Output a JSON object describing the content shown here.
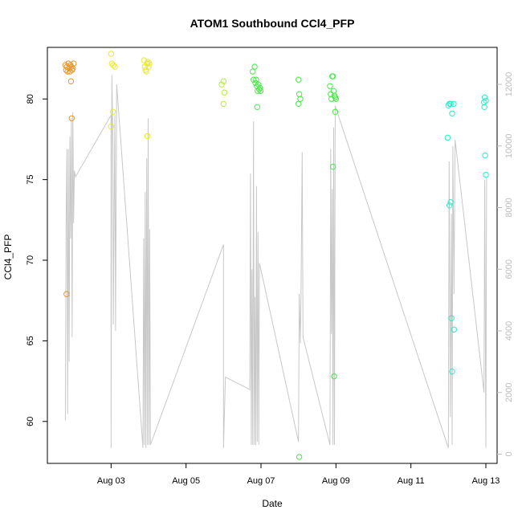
{
  "chart_data": {
    "type": "scatter",
    "title": "ATOM1 Southbound CCl4_PFP",
    "xlabel": "Date",
    "ylabel": "CCl4_PFP",
    "xlim": [
      1.3,
      13.3
    ],
    "ylim": [
      57.4,
      83.2
    ],
    "y2lim": [
      -300,
      13200
    ],
    "x_ticks": [
      {
        "value": 3,
        "label": "Aug 03"
      },
      {
        "value": 5,
        "label": "Aug 05"
      },
      {
        "value": 7,
        "label": "Aug 07"
      },
      {
        "value": 9,
        "label": "Aug 09"
      },
      {
        "value": 11,
        "label": "Aug 11"
      },
      {
        "value": 13,
        "label": "Aug 13"
      }
    ],
    "y_ticks": [
      60,
      65,
      70,
      75,
      80
    ],
    "y2_ticks": [
      0,
      2000,
      4000,
      6000,
      8000,
      10000,
      12000
    ],
    "grid": false,
    "legend": "none",
    "colors": {
      "orange": "#e8952b",
      "yellow": "#e8e832",
      "lime": "#b4f03c",
      "green": "#48e848",
      "spring": "#2ef09a",
      "cyan": "#2ee8c8",
      "altitude_line": "#c8c8c8"
    },
    "series": [
      {
        "color": "orange",
        "points": [
          [
            1.78,
            82.1
          ],
          [
            1.8,
            81.8
          ],
          [
            1.82,
            82.0
          ],
          [
            1.84,
            81.7
          ],
          [
            1.86,
            82.2
          ],
          [
            1.88,
            81.9
          ],
          [
            1.9,
            81.7
          ],
          [
            1.92,
            82.1
          ],
          [
            1.94,
            82.0
          ],
          [
            1.96,
            81.8
          ],
          [
            1.98,
            81.9
          ],
          [
            1.81,
            67.9
          ],
          [
            1.93,
            81.1
          ],
          [
            1.95,
            78.8
          ],
          [
            2.0,
            82.2
          ]
        ]
      },
      {
        "color": "yellow",
        "points": [
          [
            3.0,
            82.8
          ],
          [
            3.02,
            82.2
          ],
          [
            3.06,
            82.1
          ],
          [
            3.1,
            82.0
          ],
          [
            3.0,
            78.3
          ],
          [
            3.05,
            79.2
          ],
          [
            3.88,
            82.4
          ],
          [
            3.9,
            82.0
          ],
          [
            3.92,
            81.8
          ],
          [
            3.94,
            81.7
          ],
          [
            3.96,
            82.2
          ],
          [
            3.98,
            82.3
          ],
          [
            4.0,
            82.0
          ],
          [
            4.02,
            82.2
          ],
          [
            3.97,
            77.7
          ]
        ]
      },
      {
        "color": "lime",
        "points": [
          [
            5.95,
            80.9
          ],
          [
            6.0,
            81.1
          ],
          [
            6.02,
            80.4
          ],
          [
            6.0,
            79.7
          ]
        ]
      },
      {
        "color": "green",
        "points": [
          [
            6.78,
            81.7
          ],
          [
            6.8,
            81.2
          ],
          [
            6.83,
            82.0
          ],
          [
            6.85,
            81.0
          ],
          [
            6.87,
            81.2
          ],
          [
            6.89,
            80.8
          ],
          [
            6.91,
            80.5
          ],
          [
            6.93,
            80.9
          ],
          [
            6.95,
            80.6
          ],
          [
            6.97,
            80.7
          ],
          [
            6.99,
            80.5
          ],
          [
            6.9,
            79.5
          ],
          [
            8.0,
            81.2
          ],
          [
            8.02,
            80.3
          ],
          [
            8.05,
            80.0
          ],
          [
            8.0,
            79.7
          ],
          [
            8.02,
            57.8
          ],
          [
            8.84,
            80.8
          ],
          [
            8.86,
            80.3
          ],
          [
            8.88,
            80.0
          ],
          [
            8.9,
            81.4
          ],
          [
            8.92,
            81.4
          ],
          [
            8.94,
            80.5
          ],
          [
            8.96,
            80.2
          ],
          [
            8.98,
            80.1
          ],
          [
            9.0,
            80.0
          ],
          [
            8.98,
            79.2
          ],
          [
            8.92,
            75.8
          ],
          [
            8.95,
            62.8
          ]
        ]
      },
      {
        "color": "cyan",
        "points": [
          [
            11.98,
            77.6
          ],
          [
            12.0,
            79.6
          ],
          [
            12.03,
            79.7
          ],
          [
            12.06,
            79.7
          ],
          [
            12.1,
            79.1
          ],
          [
            12.14,
            79.7
          ],
          [
            12.03,
            73.4
          ],
          [
            12.06,
            73.6
          ],
          [
            12.08,
            66.4
          ],
          [
            12.1,
            63.1
          ],
          [
            12.15,
            65.7
          ],
          [
            12.95,
            79.8
          ],
          [
            12.97,
            80.1
          ],
          [
            13.0,
            79.9
          ],
          [
            12.96,
            79.5
          ],
          [
            12.98,
            76.5
          ],
          [
            13.0,
            75.3
          ]
        ]
      }
    ],
    "altitude_series": {
      "axis": "right",
      "points": [
        [
          1.78,
          1100
        ],
        [
          1.8,
          7500
        ],
        [
          1.82,
          9900
        ],
        [
          1.84,
          1300
        ],
        [
          1.86,
          9900
        ],
        [
          1.88,
          3000
        ],
        [
          1.9,
          10300
        ],
        [
          1.92,
          7000
        ],
        [
          1.94,
          10900
        ],
        [
          1.96,
          3800
        ],
        [
          1.98,
          11100
        ],
        [
          2.0,
          7500
        ],
        [
          2.02,
          9200
        ],
        [
          2.05,
          9000
        ],
        [
          3.0,
          11000
        ],
        [
          3.0,
          200
        ],
        [
          3.02,
          12300
        ],
        [
          3.05,
          10000
        ],
        [
          3.06,
          4200
        ],
        [
          3.1,
          11000
        ],
        [
          3.12,
          4000
        ],
        [
          3.15,
          12000
        ],
        [
          3.85,
          200
        ],
        [
          3.87,
          7000
        ],
        [
          3.89,
          300
        ],
        [
          3.91,
          8500
        ],
        [
          3.93,
          200
        ],
        [
          3.95,
          9600
        ],
        [
          3.97,
          300
        ],
        [
          3.99,
          10900
        ],
        [
          4.01,
          300
        ],
        [
          4.03,
          7300
        ],
        [
          4.05,
          300
        ],
        [
          6.0,
          6800
        ],
        [
          6.0,
          200
        ],
        [
          6.05,
          2500
        ],
        [
          6.7,
          2100
        ],
        [
          6.72,
          9100
        ],
        [
          6.74,
          300
        ],
        [
          6.76,
          6000
        ],
        [
          6.78,
          300
        ],
        [
          6.8,
          10800
        ],
        [
          6.82,
          300
        ],
        [
          6.84,
          5100
        ],
        [
          6.86,
          300
        ],
        [
          6.88,
          8700
        ],
        [
          6.9,
          400
        ],
        [
          6.92,
          7200
        ],
        [
          6.94,
          300
        ],
        [
          6.96,
          6200
        ],
        [
          8.0,
          400
        ],
        [
          8.02,
          5200
        ],
        [
          8.05,
          3600
        ],
        [
          8.07,
          5400
        ],
        [
          8.1,
          9800
        ],
        [
          8.12,
          3800
        ],
        [
          8.84,
          300
        ],
        [
          8.86,
          9900
        ],
        [
          8.88,
          3900
        ],
        [
          8.9,
          8600
        ],
        [
          8.92,
          300
        ],
        [
          8.94,
          10600
        ],
        [
          8.96,
          300
        ],
        [
          8.98,
          11300
        ],
        [
          12.0,
          200
        ],
        [
          12.02,
          9500
        ],
        [
          12.05,
          1200
        ],
        [
          12.08,
          7800
        ],
        [
          12.1,
          300
        ],
        [
          12.12,
          10000
        ],
        [
          12.15,
          5200
        ],
        [
          12.18,
          10200
        ],
        [
          12.95,
          2000
        ],
        [
          12.97,
          8900
        ],
        [
          13.0,
          200
        ],
        [
          13.02,
          9000
        ]
      ],
      "segments_connecting": true
    }
  }
}
